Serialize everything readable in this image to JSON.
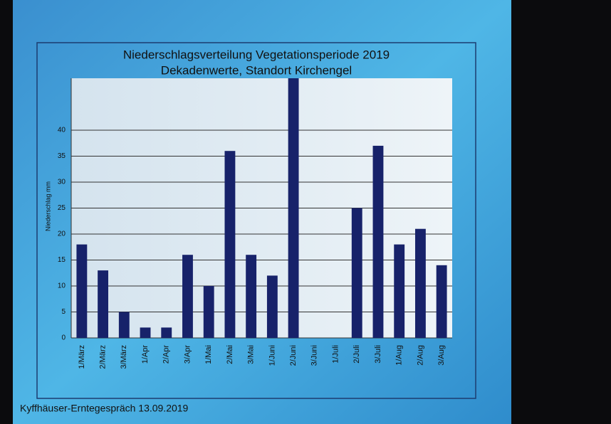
{
  "chart_data": {
    "type": "bar",
    "title": "Niederschlagsverteilung Vegetationsperiode 2019",
    "subtitle": "Dekadenwerte, Standort Kirchengel",
    "y_label": "Niederschlag mm",
    "categories": [
      "1/März",
      "2/März",
      "3/März",
      "1/Apr",
      "2/Apr",
      "3/Apr",
      "1/Mai",
      "2/Mai",
      "3/Mai",
      "1/Juni",
      "2/Juni",
      "3/Juni",
      "1/Juli",
      "2/Juli",
      "3/Juli",
      "1/Aug",
      "2/Aug",
      "3/Aug"
    ],
    "values": [
      18,
      13,
      5,
      2,
      2,
      16,
      10,
      36,
      16,
      12,
      50,
      0,
      0,
      25,
      37,
      18,
      21,
      14
    ],
    "color": "#17226a",
    "ylim": [
      0,
      50
    ],
    "yticks": [
      0,
      5,
      10,
      15,
      20,
      25,
      30,
      35,
      40
    ],
    "grid": true
  },
  "footer": "Kyffhäuser-Erntegespräch 13.09.2019"
}
